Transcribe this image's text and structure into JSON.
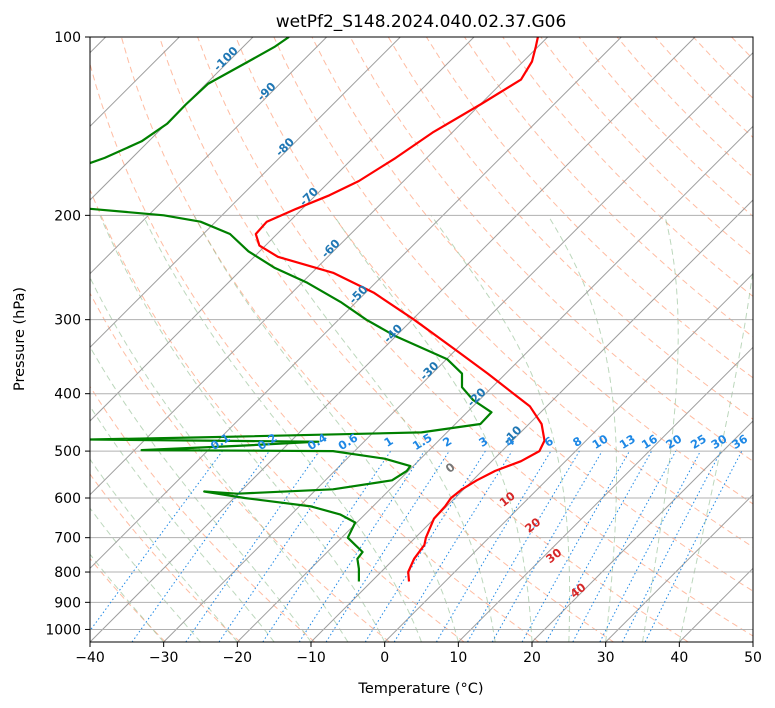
{
  "chart_data": {
    "type": "skew-t",
    "title": "wetPf2_S148.2024.040.02.37.G06",
    "xlabel": "Temperature (°C)",
    "ylabel": "Pressure (hPa)",
    "xlim": [
      -40,
      50
    ],
    "ylim": [
      1050,
      100
    ],
    "x_ticks": [
      "−40",
      "−30",
      "−20",
      "−10",
      "0",
      "10",
      "20",
      "30",
      "40",
      "50"
    ],
    "x_tick_values": [
      -40,
      -30,
      -20,
      -10,
      0,
      10,
      20,
      30,
      40,
      50
    ],
    "y_ticks": [
      "100",
      "200",
      "300",
      "400",
      "500",
      "600",
      "700",
      "800",
      "900",
      "1000"
    ],
    "y_tick_values": [
      100,
      200,
      300,
      400,
      500,
      600,
      700,
      800,
      900,
      1000
    ],
    "grid": true,
    "series": [
      {
        "color": "#ff0000",
        "points": [
          [
            830,
            3.3
          ],
          [
            800,
            3.2
          ],
          [
            760,
            4.0
          ],
          [
            720,
            5.4
          ],
          [
            700,
            5.6
          ],
          [
            650,
            6.7
          ],
          [
            620,
            8.2
          ],
          [
            600,
            9.0
          ],
          [
            580,
            10.5
          ],
          [
            560,
            12.5
          ],
          [
            540,
            15.0
          ],
          [
            520,
            18.5
          ],
          [
            500,
            21.0
          ],
          [
            480,
            21.7
          ],
          [
            450,
            21.3
          ],
          [
            420,
            19.7
          ],
          [
            400,
            17.5
          ],
          [
            370,
            14.0
          ],
          [
            340,
            10.0
          ],
          [
            300,
            4.0
          ],
          [
            270,
            -1.5
          ],
          [
            250,
            -7.0
          ],
          [
            235,
            -14.5
          ],
          [
            225,
            -17.0
          ],
          [
            215,
            -17.5
          ],
          [
            205,
            -16.0
          ],
          [
            195,
            -12.0
          ],
          [
            185,
            -7.5
          ],
          [
            175,
            -3.5
          ],
          [
            160,
            1.5
          ],
          [
            145,
            6.5
          ],
          [
            130,
            13.0
          ],
          [
            118,
            18.5
          ],
          [
            110,
            20.0
          ],
          [
            104,
            20.5
          ],
          [
            100,
            20.8
          ]
        ]
      },
      {
        "color": "#008000",
        "points": [
          [
            830,
            -3.5
          ],
          [
            790,
            -3.5
          ],
          [
            760,
            -3.7
          ],
          [
            740,
            -3.0
          ],
          [
            720,
            -4.0
          ],
          [
            700,
            -5.0
          ],
          [
            680,
            -4.5
          ],
          [
            660,
            -4.0
          ],
          [
            640,
            -6.0
          ],
          [
            620,
            -10.0
          ],
          [
            600,
            -19.0
          ],
          [
            585,
            -24.5
          ],
          [
            590,
            -20.0
          ],
          [
            580,
            -7.0
          ],
          [
            560,
            1.0
          ],
          [
            540,
            3.0
          ],
          [
            530,
            3.5
          ],
          [
            515,
            0.0
          ],
          [
            500,
            -7.0
          ],
          [
            498,
            -33.0
          ],
          [
            490,
            -20.0
          ],
          [
            482,
            -9.0
          ],
          [
            478,
            -40.0
          ],
          [
            474,
            -25.0
          ],
          [
            465,
            5.0
          ],
          [
            450,
            13.0
          ],
          [
            430,
            14.5
          ],
          [
            410,
            12.0
          ],
          [
            390,
            10.5
          ],
          [
            370,
            10.5
          ],
          [
            350,
            8.5
          ],
          [
            320,
            1.5
          ],
          [
            300,
            -2.5
          ],
          [
            280,
            -6.0
          ],
          [
            260,
            -10.5
          ],
          [
            245,
            -15.0
          ],
          [
            230,
            -18.5
          ],
          [
            215,
            -21.0
          ],
          [
            205,
            -25.0
          ],
          [
            200,
            -30.0
          ],
          [
            195,
            -40.0
          ],
          [
            190,
            -53.0
          ],
          [
            185,
            -55.0
          ],
          [
            180,
            -52.0
          ],
          [
            175,
            -50.0
          ],
          [
            170,
            -44.0
          ],
          [
            160,
            -38.0
          ],
          [
            150,
            -33.0
          ],
          [
            140,
            -29.5
          ],
          [
            130,
            -27.0
          ],
          [
            120,
            -24.0
          ],
          [
            110,
            -18.5
          ],
          [
            104,
            -15.0
          ],
          [
            100,
            -13.0
          ]
        ]
      }
    ],
    "isotherm_labels": [
      {
        "value": "-100",
        "p": 110
      },
      {
        "value": "-90",
        "p": 125
      },
      {
        "value": "-80",
        "p": 155
      },
      {
        "value": "-70",
        "p": 188
      },
      {
        "value": "-60",
        "p": 230
      },
      {
        "value": "-50",
        "p": 275
      },
      {
        "value": "-40",
        "p": 320
      },
      {
        "value": "-30",
        "p": 370
      },
      {
        "value": "-20",
        "p": 410
      },
      {
        "value": "-10",
        "p": 475
      }
    ],
    "mixing_ratio_labels": [
      "0.1",
      "0.2",
      "0.4",
      "0.6",
      "1",
      "1.5",
      "2",
      "3",
      "4",
      "6",
      "8",
      "10",
      "13",
      "16",
      "20",
      "25",
      "30",
      "36"
    ],
    "moist_adiabat_labels": [
      "0",
      "10",
      "20",
      "30",
      "40"
    ],
    "colors": {
      "temperature": "#ff0000",
      "dewpoint": "#008000",
      "isotherm": "#9e9e9e",
      "isobar": "#b0b0b0",
      "dry_adiabat": "#ffa07a",
      "moist_adiabat": "#8fbc8f",
      "mixing_ratio": "#1e88e5",
      "isotherm_label": "#1f77b4",
      "moist_label": "#d62728"
    }
  }
}
